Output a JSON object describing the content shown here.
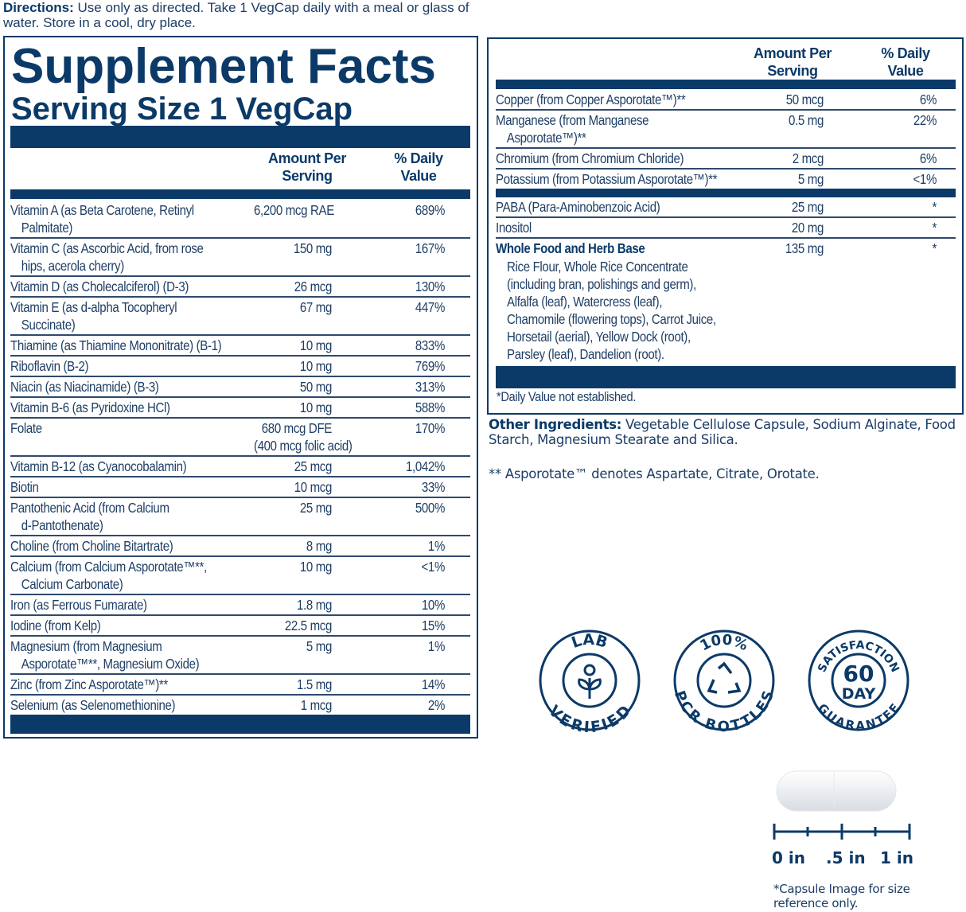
{
  "directions": {
    "label": "Directions:",
    "text": " Use only as directed. Take 1 VegCap daily with a meal or glass of water. Store in a cool, dry place."
  },
  "facts": {
    "title": "Supplement Facts",
    "serving": "Serving Size 1 VegCap",
    "col_amount_1": "Amount Per",
    "col_amount_2": "Serving",
    "col_dv_1": "% Daily",
    "col_dv_2": "Value"
  },
  "left_rows": [
    {
      "name": "Vitamin A (as Beta Carotene, Retinyl",
      "name2": "Palmitate)",
      "amount": "6,200 mcg RAE",
      "dv": "689%"
    },
    {
      "name": "Vitamin C (as Ascorbic Acid, from rose",
      "name2": "hips, acerola cherry)",
      "amount": "150 mg",
      "dv": "167%"
    },
    {
      "name": "Vitamin D (as Cholecalciferol) (D-3)",
      "amount": "26 mcg",
      "dv": "130%"
    },
    {
      "name": "Vitamin E (as d-alpha Tocopheryl",
      "name2": "Succinate)",
      "amount": "67 mg",
      "dv": "447%"
    },
    {
      "name": "Thiamine (as Thiamine Mononitrate) (B-1)",
      "amount": "10 mg",
      "dv": "833%"
    },
    {
      "name": "Riboflavin (B-2)",
      "amount": "10 mg",
      "dv": "769%"
    },
    {
      "name": "Niacin (as Niacinamide) (B-3)",
      "amount": "50 mg",
      "dv": "313%"
    },
    {
      "name": "Vitamin B-6 (as Pyridoxine HCl)",
      "amount": "10 mg",
      "dv": "588%"
    },
    {
      "name": "Folate",
      "amount": "680 mcg DFE",
      "amount2": "(400 mcg folic acid)",
      "dv": "170%"
    },
    {
      "name": "Vitamin B-12 (as Cyanocobalamin)",
      "amount": "25 mcg",
      "dv": "1,042%"
    },
    {
      "name": "Biotin",
      "amount": "10 mcg",
      "dv": "33%"
    },
    {
      "name": "Pantothenic Acid (from Calcium",
      "name2": "d-Pantothenate)",
      "amount": "25 mg",
      "dv": "500%"
    },
    {
      "name": "Choline (from Choline Bitartrate)",
      "amount": "8 mg",
      "dv": "1%"
    },
    {
      "name": "Calcium (from Calcium Asporotate™**,",
      "name2": "Calcium Carbonate)",
      "amount": "10 mg",
      "dv": "<1%"
    },
    {
      "name": "Iron (as Ferrous Fumarate)",
      "amount": "1.8 mg",
      "dv": "10%"
    },
    {
      "name": "Iodine (from Kelp)",
      "amount": "22.5 mcg",
      "dv": "15%"
    },
    {
      "name": "Magnesium (from Magnesium",
      "name2": "Asporotate™**, Magnesium Oxide)",
      "amount": "5 mg",
      "dv": "1%"
    },
    {
      "name": "Zinc (from Zinc Asporotate™)**",
      "amount": "1.5 mg",
      "dv": "14%"
    },
    {
      "name": "Selenium (as Selenomethionine)",
      "amount": "1 mcg",
      "dv": "2%"
    }
  ],
  "right_rows_a": [
    {
      "name": "Copper (from Copper Asporotate™)**",
      "amount": "50 mcg",
      "dv": "6%"
    },
    {
      "name": "Manganese (from Manganese",
      "name2": "Asporotate™)**",
      "amount": "0.5 mg",
      "dv": "22%"
    },
    {
      "name": "Chromium (from Chromium Chloride)",
      "amount": "2 mcg",
      "dv": "6%"
    },
    {
      "name": "Potassium (from Potassium Asporotate™)**",
      "amount": "5 mg",
      "dv": "<1%"
    }
  ],
  "right_rows_b": [
    {
      "name": "PABA (Para-Aminobenzoic Acid)",
      "amount": "25 mg",
      "dv": "*"
    },
    {
      "name": "Inositol",
      "amount": "20 mg",
      "dv": "*"
    }
  ],
  "herb": {
    "name": "Whole Food and Herb Base",
    "amount": "135 mg",
    "dv": "*",
    "lines": [
      "Rice Flour, Whole Rice Concentrate",
      "(including bran, polishings and germ),",
      "Alfalfa (leaf), Watercress (leaf),",
      "Chamomile (flowering tops), Carrot Juice,",
      "Horsetail (aerial), Yellow Dock (root),",
      "Parsley (leaf), Dandelion (root)."
    ]
  },
  "footnote": "*Daily Value not established.",
  "other": {
    "label": "Other Ingredients:",
    "text": " Vegetable Cellulose Capsule, Sodium Alginate, Food Starch, Magnesium Stearate and Silica."
  },
  "asporotate_note": "** Asporotate™ denotes Aspartate, Citrate, Orotate.",
  "badges": {
    "lab_top": "LAB",
    "lab_bottom": "VERIFIED",
    "pcr_top": "100%",
    "pcr_bottom": "PCR BOTTLES",
    "sat_top": "SATISFACTION",
    "sat_num": "60",
    "sat_day": "DAY",
    "sat_bottom": "GUARANTEE"
  },
  "scale": {
    "l0": "0 in",
    "l1": ".5 in",
    "l2": "1 in",
    "note1": "*Capsule Image for size",
    "note2": "reference only."
  },
  "colors": {
    "navy": "#0b3a68"
  }
}
